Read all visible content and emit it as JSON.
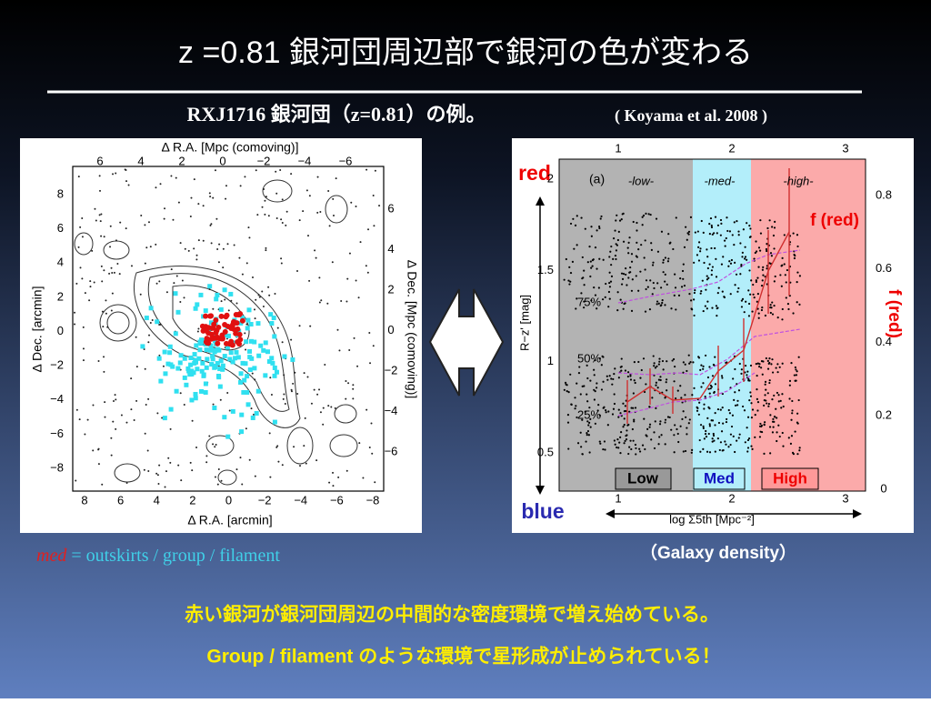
{
  "slide": {
    "title": "z =0.81 銀河団周辺部で銀河の色が変わる",
    "subtitle": "RXJ1716 銀河団（z=0.81）の例。",
    "citation": "( Koyama et al. 2008 )",
    "map": {
      "top_label": "Δ R.A. [Mpc (comoving)]",
      "bottom_label": "Δ R.A. [arcmin]",
      "left_label": "Δ Dec. [arcmin]",
      "right_label": "Δ Dec. [Mpc (comoving)]",
      "top_ticks": [
        "6",
        "4",
        "2",
        "0",
        "−2",
        "−4",
        "−6"
      ],
      "bottom_ticks": [
        "8",
        "6",
        "4",
        "2",
        "0",
        "−2",
        "−4",
        "−6",
        "−8"
      ],
      "left_ticks": [
        "8",
        "6",
        "4",
        "2",
        "0",
        "−2",
        "−4",
        "−6",
        "−8"
      ],
      "right_ticks": [
        "6",
        "4",
        "2",
        "0",
        "−2",
        "−4",
        "−6"
      ]
    },
    "caption": {
      "emphasis": "med",
      "text": "= outskirts / group / filament"
    },
    "plot": {
      "panel": "(a)",
      "regions": [
        "-low-",
        "-med-",
        "-high-"
      ],
      "percentiles": [
        "75%",
        "50%",
        "25%"
      ],
      "y_label": "R−z' [mag]",
      "x_label": "log Σ5th [Mpc⁻²]",
      "yticks": [
        "2",
        "1.5",
        "1",
        "0.5"
      ],
      "y2ticks": [
        "0.8",
        "0.6",
        "0.4",
        "0.2",
        "0"
      ],
      "xticks_top": [
        "1",
        "2",
        "3"
      ],
      "xticks_bottom": [
        "1",
        "2",
        "3"
      ],
      "red": "red",
      "blue": "blue",
      "f_red": "f (red)",
      "f_red_side": "f (red)",
      "boxes": [
        "Low",
        "Med",
        "High"
      ]
    },
    "density_note": "（Galaxy density）",
    "conclusion": [
      "赤い銀河が銀河団周辺の中間的な密度環境で増え始めている。",
      "Group / filament のような環境で星形成が止められている！"
    ]
  }
}
